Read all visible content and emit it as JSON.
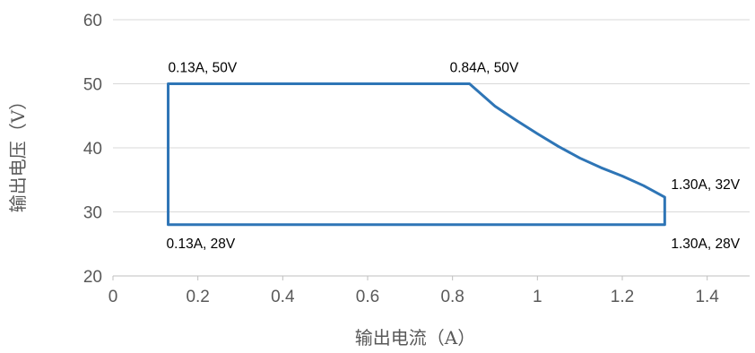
{
  "chart_data": {
    "type": "line",
    "title": "",
    "xlabel": "输出电流（A）",
    "ylabel": "输出电压（V）",
    "xlim": [
      0,
      1.5
    ],
    "ylim": [
      20,
      60
    ],
    "xticks": [
      0,
      0.2,
      0.4,
      0.6,
      0.8,
      1,
      1.2,
      1.4
    ],
    "xtick_labels": [
      "0",
      "0.2",
      "0.4",
      "0.6",
      "0.8",
      "1",
      "1.2",
      "1.4"
    ],
    "yticks": [
      20,
      30,
      40,
      50,
      60
    ],
    "ytick_labels": [
      "20",
      "30",
      "40",
      "50",
      "60"
    ],
    "grid": "horizontal",
    "legend": "none",
    "line_color": "#2e75b6",
    "series": [
      {
        "closed": true,
        "points": [
          [
            0.13,
            28
          ],
          [
            0.13,
            50
          ],
          [
            0.84,
            50
          ],
          [
            0.9,
            46.5
          ],
          [
            0.95,
            44.3
          ],
          [
            1.0,
            42.2
          ],
          [
            1.05,
            40.2
          ],
          [
            1.1,
            38.4
          ],
          [
            1.15,
            36.9
          ],
          [
            1.2,
            35.6
          ],
          [
            1.25,
            34.1
          ],
          [
            1.3,
            32.3
          ],
          [
            1.3,
            28
          ],
          [
            0.13,
            28
          ]
        ]
      }
    ],
    "annotations": [
      {
        "text": "0.13A, 50V",
        "x": 0.13,
        "y": 50
      },
      {
        "text": "0.84A, 50V",
        "x": 0.84,
        "y": 50
      },
      {
        "text": "1.30A, 32V",
        "x": 1.3,
        "y": 32.3
      },
      {
        "text": "0.13A, 28V",
        "x": 0.13,
        "y": 28
      },
      {
        "text": "1.30A, 28V",
        "x": 1.3,
        "y": 28
      }
    ]
  }
}
